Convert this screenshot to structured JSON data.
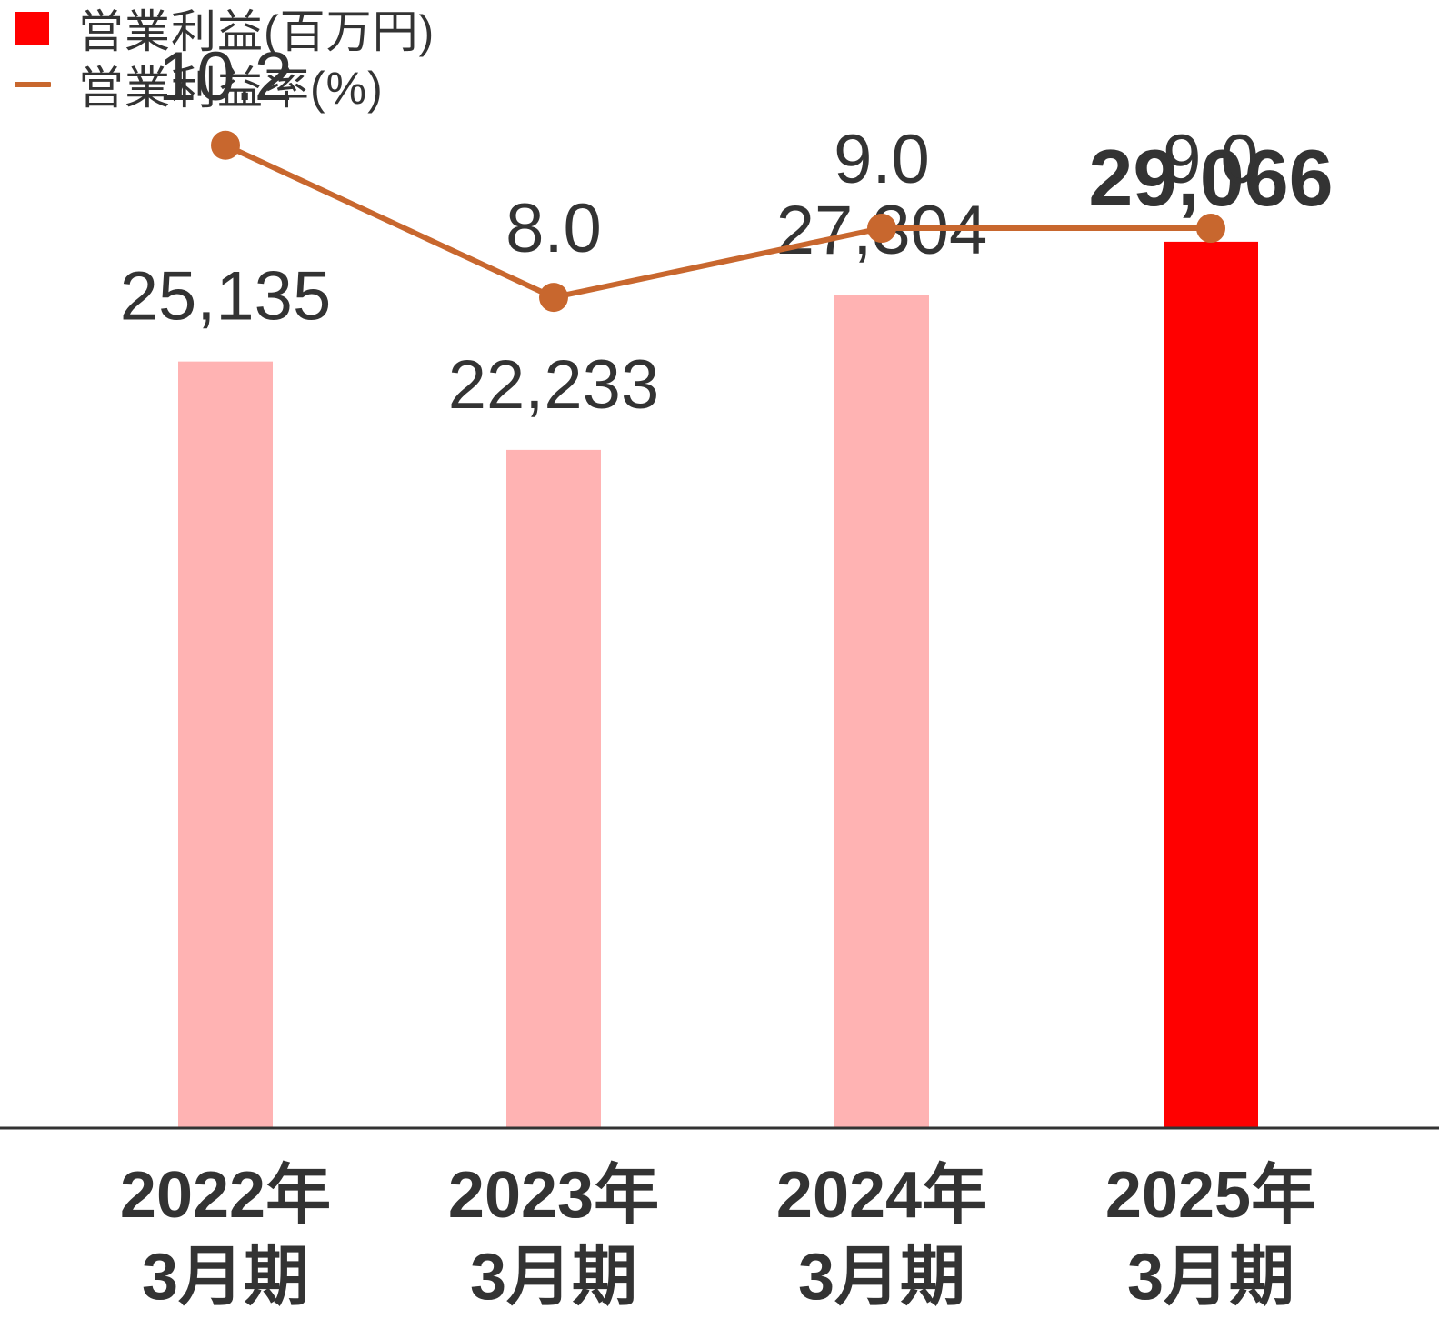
{
  "legend": {
    "bar_label": "営業利益(百万円)",
    "line_label": "営業利益率(%)"
  },
  "colors": {
    "bar_default": "#ffb3b3",
    "bar_highlight": "#ff0000",
    "line": "#c8672e",
    "text": "#333333",
    "axis": "#333333"
  },
  "chart_data": {
    "type": "bar",
    "categories": [
      {
        "year": "2022年",
        "period": "3月期"
      },
      {
        "year": "2023年",
        "period": "3月期"
      },
      {
        "year": "2024年",
        "period": "3月期"
      },
      {
        "year": "2025年",
        "period": "3月期"
      }
    ],
    "series": [
      {
        "name": "営業利益(百万円)",
        "type": "bar",
        "values": [
          25135,
          22233,
          27304,
          29066
        ],
        "labels": [
          "25,135",
          "22,233",
          "27,304",
          "29,066"
        ],
        "highlight_index": 3
      },
      {
        "name": "営業利益率(%)",
        "type": "line",
        "values": [
          10.2,
          8.0,
          9.0,
          9.0
        ],
        "labels": [
          "10.2",
          "8.0",
          "9.0",
          "9.0"
        ]
      }
    ],
    "bar_ylim": [
      0,
      37000
    ],
    "line_ylim": [
      -4,
      12.3
    ],
    "grid": false,
    "legend_position": "top-left"
  }
}
